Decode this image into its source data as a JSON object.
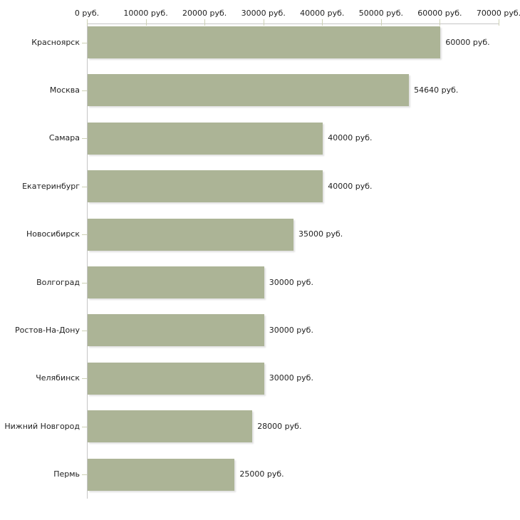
{
  "chart_data": {
    "type": "bar",
    "orientation": "horizontal",
    "categories": [
      "Красноярск",
      "Москва",
      "Самара",
      "Екатеринбург",
      "Новосибирск",
      "Волгоград",
      "Ростов-На-Дону",
      "Челябинск",
      "Нижний Новгород",
      "Пермь"
    ],
    "values": [
      60000,
      54640,
      40000,
      40000,
      35000,
      30000,
      30000,
      30000,
      28000,
      25000
    ],
    "value_labels": [
      "60000 руб.",
      "54640 руб.",
      "40000 руб.",
      "40000 руб.",
      "35000 руб.",
      "30000 руб.",
      "30000 руб.",
      "30000 руб.",
      "28000 руб.",
      "25000 руб."
    ],
    "x_axis": {
      "position": "top",
      "min": 0,
      "max": 70000,
      "ticks": [
        0,
        10000,
        20000,
        30000,
        40000,
        50000,
        60000,
        70000
      ],
      "tick_labels": [
        "0 руб.",
        "10000 руб.",
        "20000 руб.",
        "30000 руб.",
        "40000 руб.",
        "50000 руб.",
        "60000 руб.",
        "70000 руб."
      ]
    },
    "grid": false,
    "legend": false,
    "colors": {
      "bar": "#acb496",
      "axis_line": "#c5c5c5",
      "tick_mark": "#cdd1b5",
      "text": "#1f1f1f",
      "background": "#ffffff"
    }
  }
}
